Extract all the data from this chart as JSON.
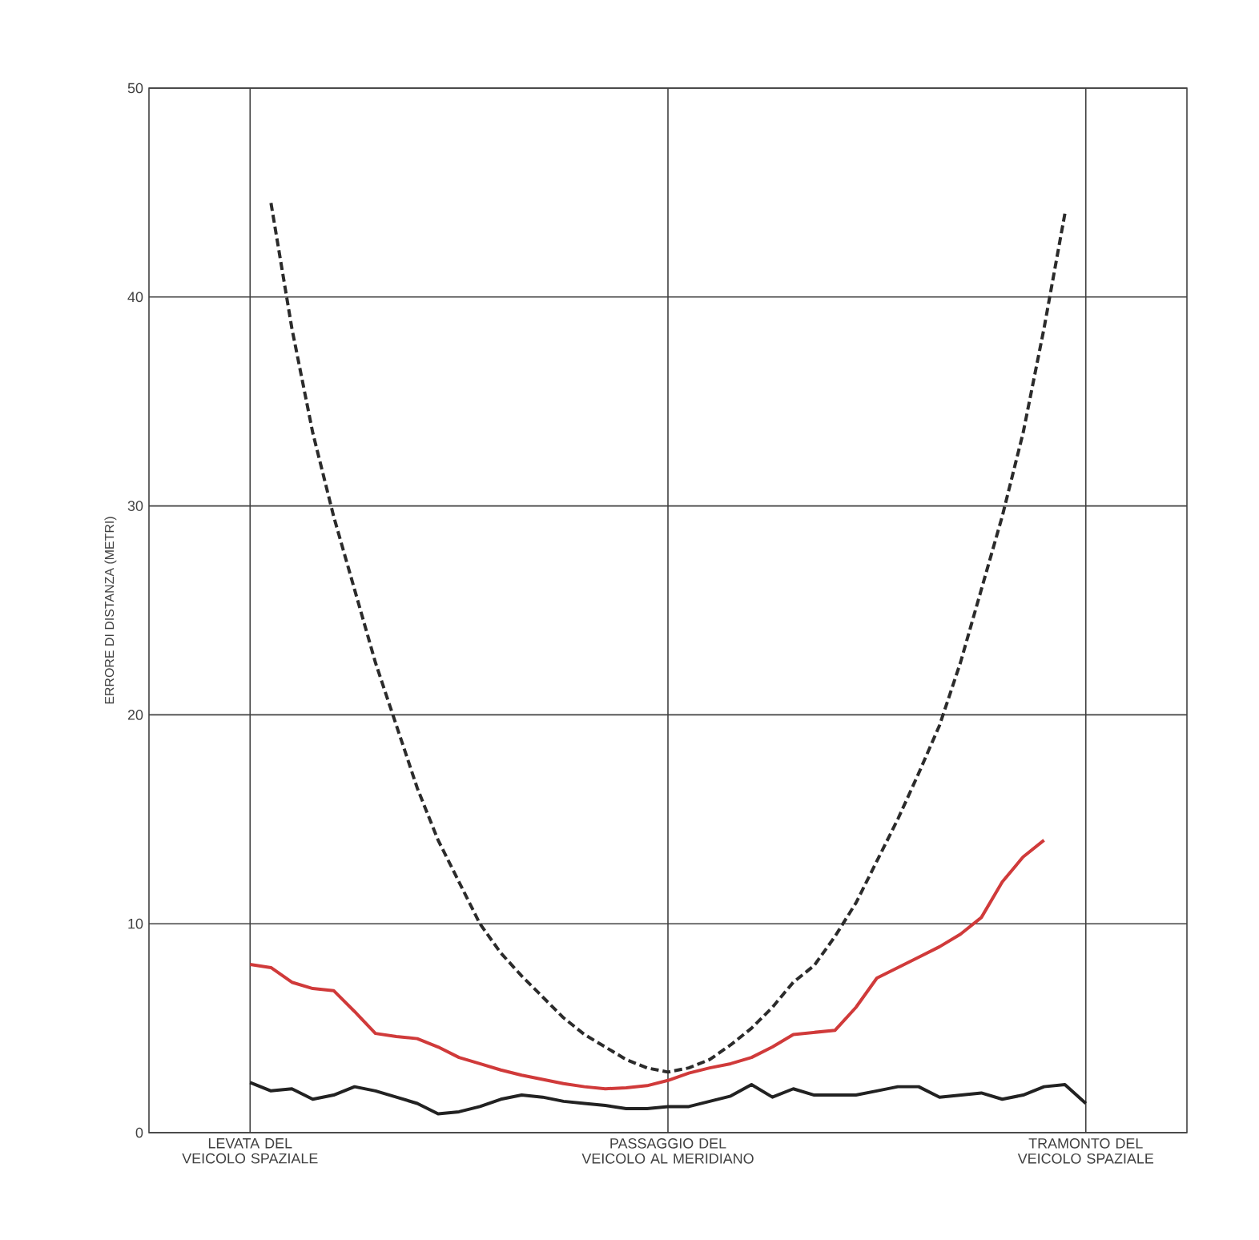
{
  "chart_data": {
    "type": "line",
    "ylabel": "ERRORE DI DISTANZA (METRI)",
    "categories": [
      "LEVATA DEL VEICOLO SPAZIALE",
      null,
      null,
      null,
      null,
      null,
      null,
      null,
      null,
      null,
      null,
      null,
      null,
      null,
      null,
      null,
      null,
      null,
      null,
      null,
      "PASSAGGIO DEL VEICOLO AL MERIDIANO",
      null,
      null,
      null,
      null,
      null,
      null,
      null,
      null,
      null,
      null,
      null,
      null,
      null,
      null,
      null,
      null,
      null,
      null,
      null,
      "TRAMONTO DEL VEICOLO SPAZIALE"
    ],
    "ylim": [
      0,
      50
    ],
    "yticks": [
      0,
      10,
      20,
      30,
      40,
      50
    ],
    "grid": true,
    "series": [
      {
        "color": "#2b2b2b",
        "line_style": "dashed",
        "values": [
          null,
          44.5,
          38.5,
          33.5,
          29.5,
          26,
          22.5,
          19.5,
          16.5,
          14,
          12,
          10,
          8.6,
          7.5,
          6.5,
          5.5,
          4.7,
          4.1,
          3.5,
          3.1,
          2.9,
          3.1,
          3.5,
          4.2,
          5.0,
          6.0,
          7.2,
          8.0,
          9.4,
          11,
          13,
          15,
          17.2,
          19.5,
          22.5,
          26,
          29.5,
          33.5,
          38.5,
          44,
          null
        ]
      },
      {
        "color": "#d03a3a",
        "line_style": "solid",
        "values": [
          8.05,
          7.9,
          7.2,
          6.9,
          6.8,
          5.8,
          4.75,
          4.6,
          4.5,
          4.1,
          3.6,
          3.3,
          3.0,
          2.75,
          2.55,
          2.35,
          2.2,
          2.1,
          2.15,
          2.25,
          2.5,
          2.85,
          3.1,
          3.3,
          3.6,
          4.1,
          4.7,
          4.8,
          4.9,
          6.0,
          7.4,
          7.9,
          8.4,
          8.9,
          9.5,
          10.3,
          12,
          13.2,
          14.0,
          null,
          null
        ]
      },
      {
        "color": "#222222",
        "line_style": "solid",
        "values": [
          2.4,
          2.0,
          2.1,
          1.6,
          1.8,
          2.2,
          2.0,
          1.7,
          1.4,
          0.9,
          1.0,
          1.25,
          1.6,
          1.8,
          1.7,
          1.5,
          1.4,
          1.3,
          1.15,
          1.15,
          1.25,
          1.25,
          1.5,
          1.75,
          2.3,
          1.7,
          2.1,
          1.8,
          1.8,
          1.8,
          2.0,
          2.2,
          2.2,
          1.7,
          1.8,
          1.9,
          1.6,
          1.8,
          2.2,
          2.3,
          1.4
        ]
      }
    ]
  }
}
